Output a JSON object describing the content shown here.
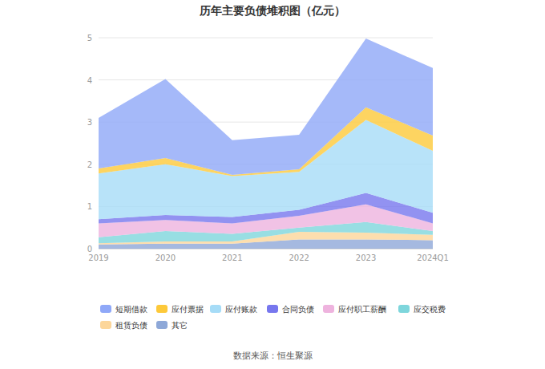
{
  "chart_data": {
    "type": "area",
    "title": "历年主要负债堆积图（亿元）",
    "source": "数据来源：恒生聚源",
    "stacked": true,
    "grid": true,
    "legend": "bottom",
    "categories": [
      "2019",
      "2020",
      "2021",
      "2022",
      "2023",
      "2024Q1"
    ],
    "ylim": [
      0,
      5
    ],
    "yticks": [
      0,
      1,
      2,
      3,
      4,
      5
    ],
    "series": [
      {
        "name": "其它",
        "color": "#8ea8d8",
        "values": [
          0.1,
          0.12,
          0.12,
          0.22,
          0.22,
          0.2
        ]
      },
      {
        "name": "租赁负债",
        "color": "#fcd69a",
        "values": [
          0.03,
          0.05,
          0.05,
          0.18,
          0.16,
          0.13
        ]
      },
      {
        "name": "应交税费",
        "color": "#7ed6dc",
        "values": [
          0.14,
          0.25,
          0.18,
          0.1,
          0.25,
          0.09
        ]
      },
      {
        "name": "应付职工薪酬",
        "color": "#eeb3de",
        "values": [
          0.33,
          0.26,
          0.25,
          0.28,
          0.42,
          0.18
        ]
      },
      {
        "name": "合同负债",
        "color": "#7777ee",
        "values": [
          0.1,
          0.12,
          0.15,
          0.14,
          0.27,
          0.25
        ]
      },
      {
        "name": "应付账款",
        "color": "#a6dcf7",
        "values": [
          1.08,
          1.2,
          0.97,
          0.9,
          1.73,
          1.47
        ]
      },
      {
        "name": "应付票据",
        "color": "#fdc93a",
        "values": [
          0.12,
          0.15,
          0.03,
          0.06,
          0.3,
          0.36
        ]
      },
      {
        "name": "短期借款",
        "color": "#8fa8f8",
        "values": [
          1.2,
          1.87,
          0.82,
          0.82,
          1.63,
          1.6
        ]
      }
    ]
  }
}
